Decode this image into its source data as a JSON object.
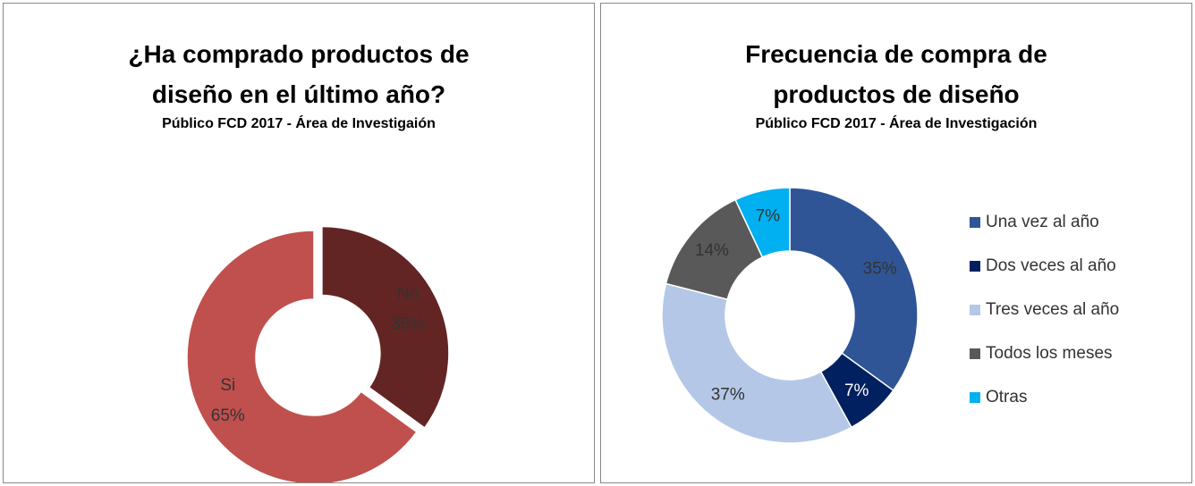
{
  "chart_data": [
    {
      "type": "donut",
      "title": "¿Ha comprado productos de diseño en el último año?",
      "subtitle": "Público FCD 2017 - Área de Investigaión",
      "categories": [
        "No",
        "Si"
      ],
      "values": [
        35,
        65
      ],
      "value_labels": [
        "35%",
        "65%"
      ],
      "colors": [
        "#632523",
        "#c0504d"
      ]
    },
    {
      "type": "donut",
      "title": "Frecuencia de compra de productos de diseño",
      "subtitle": "Público FCD 2017 - Área de Investigación",
      "categories": [
        "Una vez al año",
        "Dos veces al año",
        "Tres veces al año",
        "Todos los meses",
        "Otras"
      ],
      "values": [
        35,
        7,
        37,
        14,
        7
      ],
      "value_labels": [
        "35%",
        "7%",
        "37%",
        "14%",
        "7%"
      ],
      "colors": [
        "#2f5597",
        "#002060",
        "#b4c7e7",
        "#595959",
        "#00b0f0"
      ],
      "legend": "right"
    }
  ]
}
